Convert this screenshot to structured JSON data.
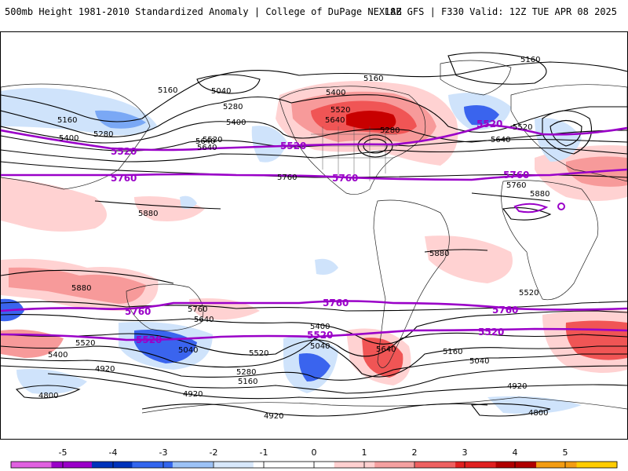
{
  "header": {
    "title": "500mb Height 1981-2010 Standardized Anomaly | College of DuPage NEXLAB",
    "run_info": "18Z GFS | F330 Valid: 12Z TUE APR 08 2025"
  },
  "colors": {
    "land_outline": "#222222",
    "contour": "#000000",
    "reference_contour": "#9a00c8",
    "neg": [
      "#ffd0ff",
      "#b000ff",
      "#0033cc",
      "#3a64ee",
      "#7aa8f5",
      "#cfe3fb"
    ],
    "pos": [
      "#ffd2d2",
      "#f79a9a",
      "#f05555",
      "#c80000",
      "#f39c12"
    ]
  },
  "colorbar": {
    "ticks": [
      "-5",
      "-4",
      "-3",
      "-2",
      "-1",
      "0",
      "1",
      "2",
      "3",
      "4",
      "5"
    ],
    "segments": [
      "#e060e0",
      "#9a00c8",
      "#0033bb",
      "#3366ee",
      "#9cc2f6",
      "#d8e8fb",
      "#ffffff",
      "#ffffff",
      "#ffd0d0",
      "#f4a0a0",
      "#ee6060",
      "#e02020",
      "#b00000",
      "#f39c12",
      "#ffcc00"
    ]
  },
  "map_labels": {
    "contours": [
      "5160",
      "5040",
      "5280",
      "5400",
      "5520",
      "5640",
      "5760",
      "5880",
      "4920",
      "4800",
      "5160",
      "5400",
      "5520",
      "5640",
      "5280",
      "5160",
      "5520",
      "5400",
      "5640",
      "5760",
      "5880",
      "5640",
      "5280",
      "5160",
      "5040",
      "5880",
      "5880",
      "5640",
      "5760",
      "5520",
      "5400",
      "5040",
      "5520",
      "5280",
      "5160",
      "4920",
      "4920",
      "5400",
      "5640",
      "5520",
      "5160",
      "5040",
      "4920",
      "4800"
    ],
    "reference": [
      "5520",
      "5760",
      "5520",
      "5760",
      "5520",
      "5760",
      "5760",
      "5760",
      "5760",
      "5520",
      "5520",
      "5520"
    ]
  }
}
